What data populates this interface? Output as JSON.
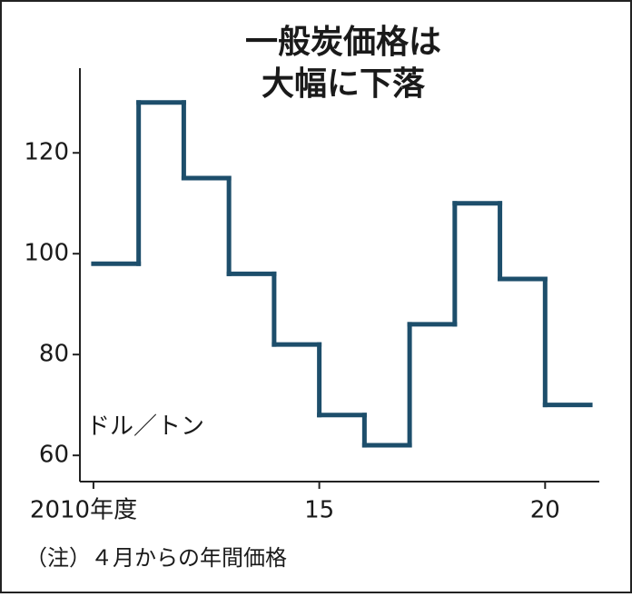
{
  "chart_data": {
    "type": "step",
    "title_lines": [
      "一般炭価格は",
      "大幅に下落"
    ],
    "unit_label": "ドル／トン",
    "note": "（注）４月からの年間価格",
    "x": [
      2010,
      2011,
      2012,
      2013,
      2014,
      2015,
      2016,
      2017,
      2018,
      2019,
      2020
    ],
    "values": [
      98,
      130,
      115,
      96,
      82,
      68,
      62,
      86,
      110,
      95,
      70
    ],
    "color": "#1d4e6b",
    "xlim": [
      2009.7,
      2021.2
    ],
    "xticks": [
      {
        "value": 2010,
        "label": "2010年度"
      },
      {
        "value": 2015,
        "label": "15"
      },
      {
        "value": 2020,
        "label": "20"
      }
    ],
    "ylim": [
      54.8,
      136.8
    ],
    "yticks": [
      60,
      80,
      100,
      120
    ]
  }
}
